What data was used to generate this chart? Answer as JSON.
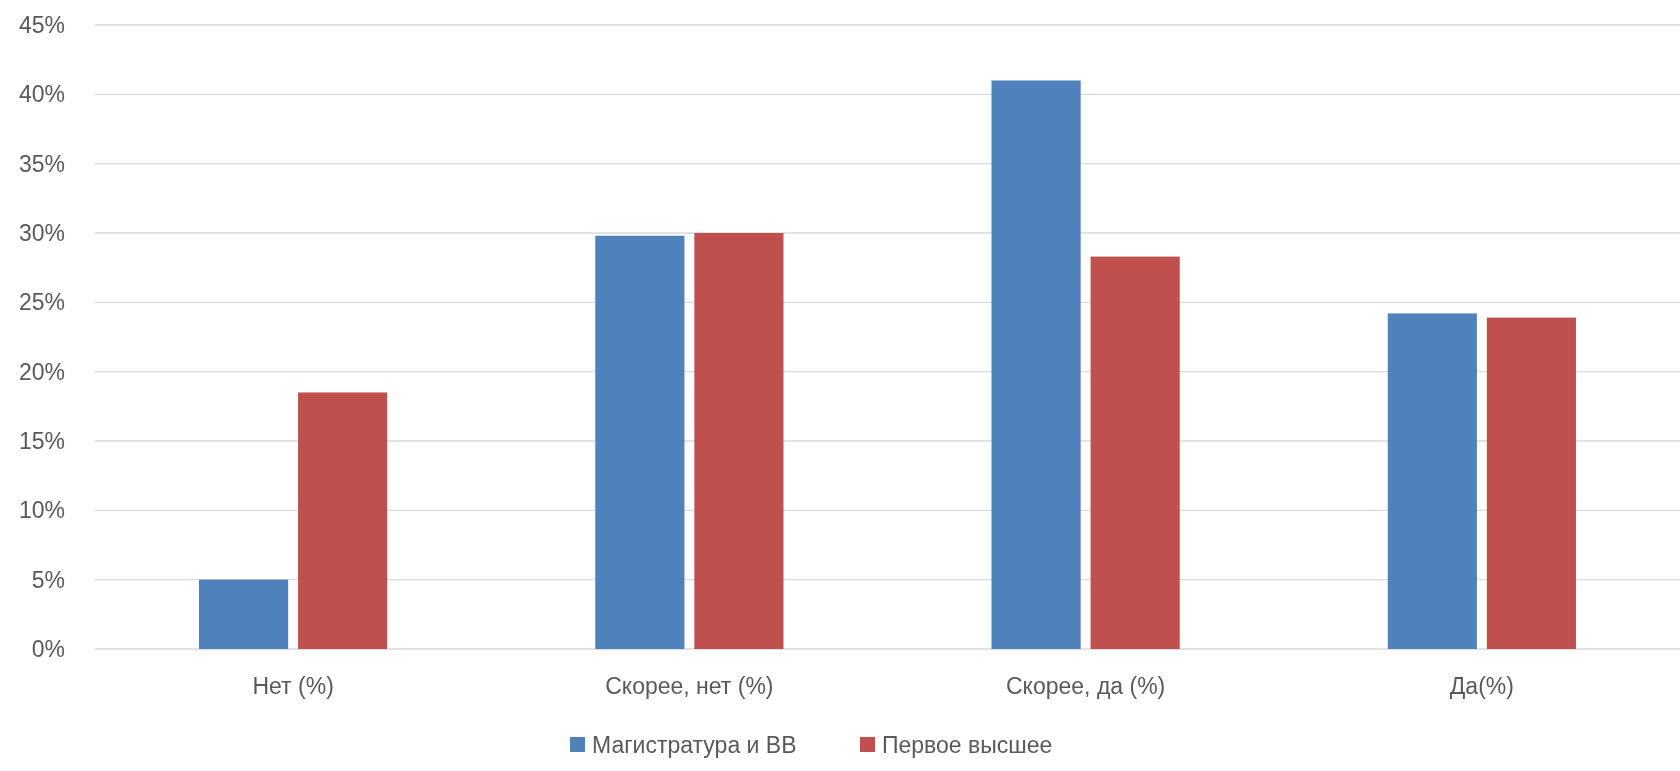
{
  "chart_data": {
    "type": "bar",
    "categories": [
      "Нет (%)",
      "Скорее, нет (%)",
      "Скорее, да (%)",
      "Да(%)"
    ],
    "series": [
      {
        "name": "Магистратура и ВВ",
        "color": "#4f81bd",
        "values": [
          5.0,
          29.8,
          41.0,
          24.2
        ]
      },
      {
        "name": "Первое высшее",
        "color": "#c0504d",
        "values": [
          18.5,
          30.0,
          28.3,
          23.9
        ]
      }
    ],
    "ylim": [
      0,
      45
    ],
    "yticks": [
      {
        "value": 0,
        "label": "0%"
      },
      {
        "value": 5,
        "label": "5%"
      },
      {
        "value": 10,
        "label": "10%"
      },
      {
        "value": 15,
        "label": "15%"
      },
      {
        "value": 20,
        "label": "20%"
      },
      {
        "value": 25,
        "label": "25%"
      },
      {
        "value": 30,
        "label": "30%"
      },
      {
        "value": 35,
        "label": "35%"
      },
      {
        "value": 40,
        "label": "40%"
      },
      {
        "value": 45,
        "label": "45%"
      }
    ],
    "grid": "y",
    "legend": "bottom"
  }
}
